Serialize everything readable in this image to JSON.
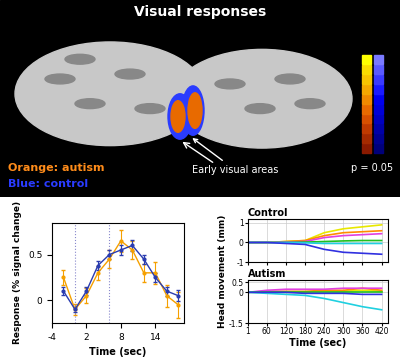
{
  "header": {
    "title": "Visual responses"
  },
  "brain_panel": {
    "legend_texts": [
      {
        "text": "Orange: autism",
        "color": "#ff8c1a"
      },
      {
        "text": "Blue: control",
        "color": "#2a3cff"
      }
    ],
    "annotation": "Early visual areas",
    "scale_label": "p = 0.05",
    "scale_colors_autism": [
      "#8b1a00",
      "#a52a00",
      "#c03a00",
      "#d85000",
      "#e86a00",
      "#f08a00",
      "#f5a800",
      "#f8c400",
      "#fadc00",
      "#ffff00"
    ],
    "scale_colors_control": [
      "#00007a",
      "#000090",
      "#0000a8",
      "#0000c0",
      "#0000d8",
      "#0000ee",
      "#1a1aff",
      "#3a3aff",
      "#5a5aff",
      "#7a7aff"
    ]
  },
  "chart_data": [
    {
      "type": "line",
      "xlabel": "Time (sec)",
      "ylabel": "Response (% signal change)",
      "x": [
        -2,
        0,
        2,
        4,
        6,
        8,
        10,
        12,
        14,
        16,
        18
      ],
      "series": [
        {
          "color": "#f5a000",
          "marker": "circle",
          "values": [
            0.25,
            -0.1,
            0.05,
            0.3,
            0.45,
            0.65,
            0.55,
            0.3,
            0.3,
            0.05,
            -0.05
          ],
          "errors": [
            0.08,
            0.06,
            0.08,
            0.08,
            0.1,
            0.12,
            0.1,
            0.1,
            0.12,
            0.12,
            0.14
          ]
        },
        {
          "color": "#2a3cb0",
          "marker": "circle",
          "values": [
            0.1,
            -0.1,
            0.1,
            0.38,
            0.5,
            0.55,
            0.6,
            0.45,
            0.25,
            0.1,
            0.05
          ],
          "errors": [
            0.04,
            0.03,
            0.04,
            0.05,
            0.05,
            0.06,
            0.06,
            0.05,
            0.05,
            0.05,
            0.06
          ]
        }
      ],
      "stimulus_lines": [
        0,
        6
      ],
      "xlim": [
        -4,
        19
      ],
      "ylim": [
        -0.25,
        0.85
      ],
      "xticks": [
        -4,
        2,
        8,
        14
      ],
      "yticks": [
        0,
        0.5
      ]
    },
    {
      "type": "line",
      "title": "Control",
      "ylabel": "Head movement (mm)",
      "grid": true,
      "tick_labels": "y",
      "x": [
        1,
        60,
        120,
        180,
        240,
        300,
        360,
        420
      ],
      "series": [
        {
          "color": "#e8e800",
          "values": [
            0,
            0,
            0.05,
            0.1,
            0.5,
            0.7,
            0.8,
            0.9
          ]
        },
        {
          "color": "#ff8c00",
          "values": [
            0,
            0,
            0.05,
            0.1,
            0.35,
            0.5,
            0.55,
            0.6
          ]
        },
        {
          "color": "#e040e0",
          "values": [
            0,
            0,
            0.02,
            0.05,
            0.25,
            0.35,
            0.4,
            0.45
          ]
        },
        {
          "color": "#20c020",
          "values": [
            0,
            0,
            0,
            0.02,
            0.05,
            0.08,
            0.1,
            0.1
          ]
        },
        {
          "color": "#20d0e0",
          "values": [
            0,
            0,
            0,
            -0.02,
            -0.05,
            -0.05,
            -0.05,
            -0.05
          ]
        },
        {
          "color": "#3030e0",
          "values": [
            0,
            0,
            -0.05,
            -0.1,
            -0.35,
            -0.5,
            -0.55,
            -0.6
          ]
        }
      ],
      "xlim": [
        1,
        440
      ],
      "ylim": [
        -1,
        1.2
      ],
      "xticks": [
        1,
        60,
        120,
        180,
        240,
        300,
        360,
        420
      ],
      "yticks": [
        -1,
        0,
        1
      ]
    },
    {
      "type": "line",
      "title": "Autism",
      "xlabel": "Time (sec)",
      "grid": true,
      "x": [
        1,
        60,
        120,
        180,
        240,
        300,
        360,
        420
      ],
      "series": [
        {
          "color": "#e8e800",
          "values": [
            0,
            0,
            0,
            0,
            0.05,
            0.05,
            0.1,
            0.05
          ]
        },
        {
          "color": "#ff8c00",
          "values": [
            0,
            0.05,
            0.05,
            0.05,
            0.1,
            0.1,
            0.2,
            0.1
          ]
        },
        {
          "color": "#e040e0",
          "values": [
            0,
            0.1,
            0.15,
            0.15,
            0.15,
            0.2,
            0.2,
            0.2
          ]
        },
        {
          "color": "#20c020",
          "values": [
            0,
            0,
            0,
            0,
            0,
            0,
            0,
            0
          ]
        },
        {
          "color": "#20d0e0",
          "values": [
            0,
            -0.05,
            -0.1,
            -0.15,
            -0.3,
            -0.5,
            -0.7,
            -0.85
          ]
        },
        {
          "color": "#3030e0",
          "values": [
            0,
            0,
            0,
            -0.05,
            -0.05,
            -0.05,
            -0.1,
            -0.1
          ]
        }
      ],
      "xlim": [
        1,
        440
      ],
      "ylim": [
        -1.5,
        0.6
      ],
      "xticks": [
        1,
        60,
        120,
        180,
        240,
        300,
        360,
        420
      ],
      "yticks": [
        -1.5,
        0,
        0.5
      ]
    }
  ]
}
